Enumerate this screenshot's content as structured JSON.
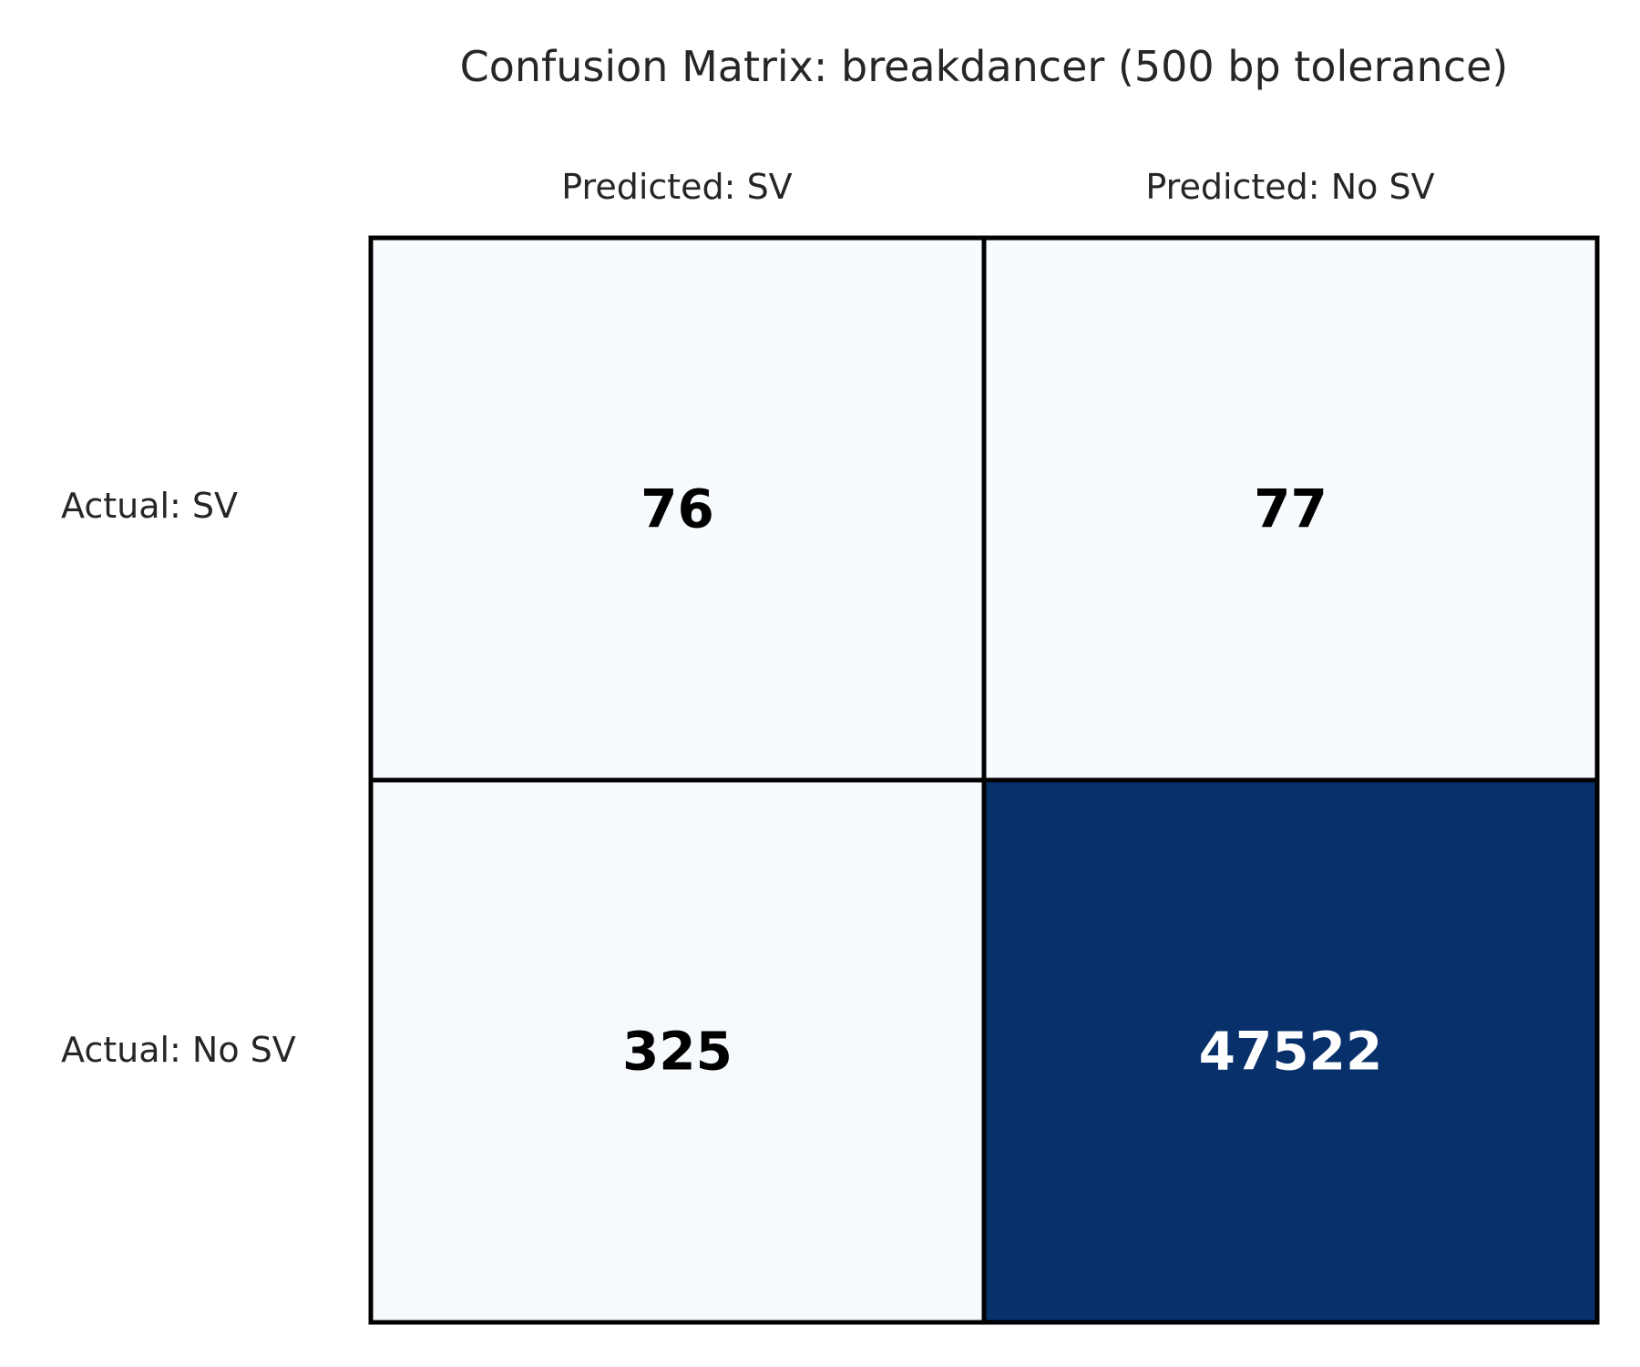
{
  "chart_data": {
    "type": "heatmap",
    "title": "Confusion Matrix: breakdancer (500 bp tolerance)",
    "x_categories": [
      "Predicted: SV",
      "Predicted: No SV"
    ],
    "y_categories": [
      "Actual: SV",
      "Actual: No SV"
    ],
    "values": [
      [
        76,
        77
      ],
      [
        325,
        47522
      ]
    ],
    "colormap": {
      "low": "#f7fbff",
      "high": "#08306b"
    },
    "value_text_colors": {
      "on_light": "#000000",
      "on_dark": "#ffffff"
    },
    "cell_border_color": "#000000",
    "grid": false,
    "legend": "none"
  }
}
